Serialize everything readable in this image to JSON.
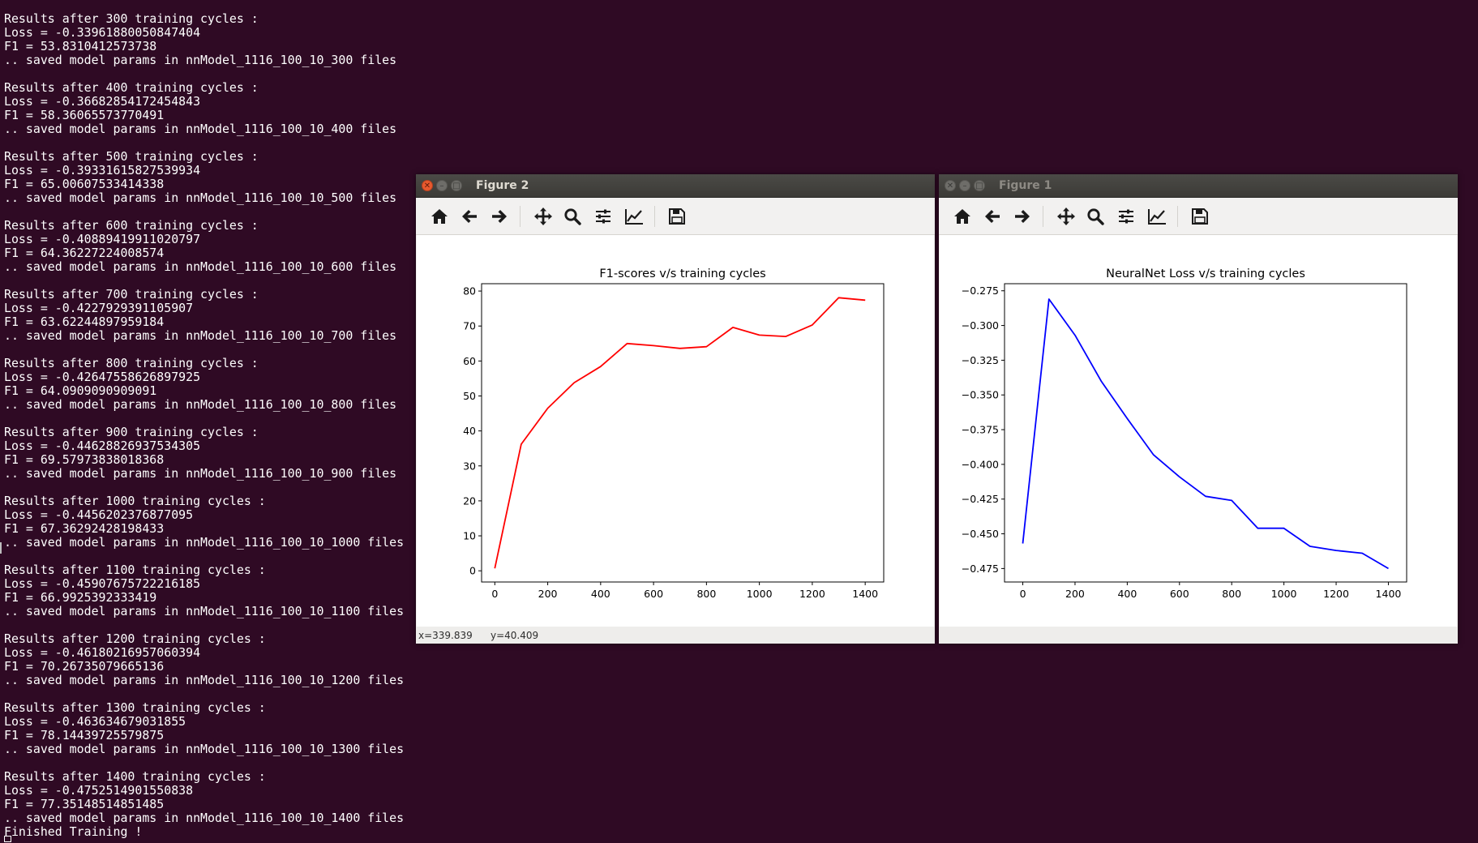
{
  "terminal": {
    "lines": [
      "Results after 300 training cycles :",
      "Loss = -0.33961880050847404",
      "F1 = 53.8310412573738",
      ".. saved model params in nnModel_1116_100_10_300 files",
      "",
      "Results after 400 training cycles :",
      "Loss = -0.36682854172454843",
      "F1 = 58.36065573770491",
      ".. saved model params in nnModel_1116_100_10_400 files",
      "",
      "Results after 500 training cycles :",
      "Loss = -0.39331615827539934",
      "F1 = 65.00607533414338",
      ".. saved model params in nnModel_1116_100_10_500 files",
      "",
      "Results after 600 training cycles :",
      "Loss = -0.40889419911020797",
      "F1 = 64.36227224008574",
      ".. saved model params in nnModel_1116_100_10_600 files",
      "",
      "Results after 700 training cycles :",
      "Loss = -0.4227929391105907",
      "F1 = 63.62244897959184",
      ".. saved model params in nnModel_1116_100_10_700 files",
      "",
      "Results after 800 training cycles :",
      "Loss = -0.42647558626897925",
      "F1 = 64.0909090909091",
      ".. saved model params in nnModel_1116_100_10_800 files",
      "",
      "Results after 900 training cycles :",
      "Loss = -0.44628826937534305",
      "F1 = 69.57973838018368",
      ".. saved model params in nnModel_1116_100_10_900 files",
      "",
      "Results after 1000 training cycles :",
      "Loss = -0.4456202376877095",
      "F1 = 67.36292428198433",
      ".. saved model params in nnModel_1116_100_10_1000 files",
      "",
      "Results after 1100 training cycles :",
      "Loss = -0.45907675722216185",
      "F1 = 66.9925392333419",
      ".. saved model params in nnModel_1116_100_10_1100 files",
      "",
      "Results after 1200 training cycles :",
      "Loss = -0.46180216957060394",
      "F1 = 70.26735079665136",
      ".. saved model params in nnModel_1116_100_10_1200 files",
      "",
      "Results after 1300 training cycles :",
      "Loss = -0.463634679031855",
      "F1 = 78.14439725579875",
      ".. saved model params in nnModel_1116_100_10_1300 files",
      "",
      "Results after 1400 training cycles :",
      "Loss = -0.4752514901550838",
      "F1 = 77.35148514851485",
      ".. saved model params in nnModel_1116_100_10_1400 files",
      "Finished Training !"
    ]
  },
  "windows": {
    "figure2": {
      "title": "Figure 2",
      "status_x": "x=339.839",
      "status_y": "y=40.409"
    },
    "figure1": {
      "title": "Figure 1"
    }
  },
  "toolbar": {
    "buttons": [
      {
        "icon": "home-icon",
        "label": "Home"
      },
      {
        "icon": "back-arrow-icon",
        "label": "Back"
      },
      {
        "icon": "forward-arrow-icon",
        "label": "Forward"
      },
      {
        "icon": "pan-move-icon",
        "label": "Pan"
      },
      {
        "icon": "zoom-magnifier-icon",
        "label": "Zoom"
      },
      {
        "icon": "subplots-sliders-icon",
        "label": "Subplots"
      },
      {
        "icon": "edit-curves-icon",
        "label": "Customize"
      },
      {
        "icon": "save-floppy-icon",
        "label": "Save"
      }
    ]
  },
  "chart_data": [
    {
      "type": "line",
      "title": "F1-scores v/s training cycles",
      "xlabel": "",
      "ylabel": "",
      "x": [
        0,
        100,
        200,
        300,
        400,
        500,
        600,
        700,
        800,
        900,
        1000,
        1100,
        1200,
        1300,
        1400
      ],
      "series": [
        {
          "values": [
            0.7,
            36.2,
            46.5,
            53.8,
            58.4,
            65.0,
            64.4,
            63.6,
            64.1,
            69.6,
            67.4,
            67.0,
            70.3,
            78.1,
            77.4
          ],
          "color": "#ff0000"
        }
      ],
      "xlim": [
        -50,
        1470
      ],
      "ylim": [
        -3.2,
        82.1
      ],
      "xticks": [
        0,
        200,
        400,
        600,
        800,
        1000,
        1200,
        1400
      ],
      "yticks": [
        0,
        10,
        20,
        30,
        40,
        50,
        60,
        70,
        80
      ],
      "ytick_labels": [
        "0",
        "10",
        "20",
        "30",
        "40",
        "50",
        "60",
        "70",
        "80"
      ],
      "grid": false,
      "legend": "none"
    },
    {
      "type": "line",
      "title": "NeuralNet Loss v/s training cycles",
      "xlabel": "",
      "ylabel": "",
      "x": [
        0,
        100,
        200,
        300,
        400,
        500,
        600,
        700,
        800,
        900,
        1000,
        1100,
        1200,
        1300,
        1400
      ],
      "series": [
        {
          "values": [
            -0.457,
            -0.281,
            -0.307,
            -0.34,
            -0.367,
            -0.393,
            -0.409,
            -0.423,
            -0.426,
            -0.446,
            -0.446,
            -0.459,
            -0.462,
            -0.464,
            -0.475
          ],
          "color": "#0000ff"
        }
      ],
      "xlim": [
        -70,
        1470
      ],
      "ylim": [
        -0.4847,
        -0.2699
      ],
      "xticks": [
        0,
        200,
        400,
        600,
        800,
        1000,
        1200,
        1400
      ],
      "yticks": [
        -0.275,
        -0.3,
        -0.325,
        -0.35,
        -0.375,
        -0.4,
        -0.425,
        -0.45,
        -0.475
      ],
      "ytick_labels": [
        "−0.275",
        "−0.300",
        "−0.325",
        "−0.350",
        "−0.375",
        "−0.400",
        "−0.425",
        "−0.450",
        "−0.475"
      ],
      "grid": false,
      "legend": "none"
    }
  ]
}
